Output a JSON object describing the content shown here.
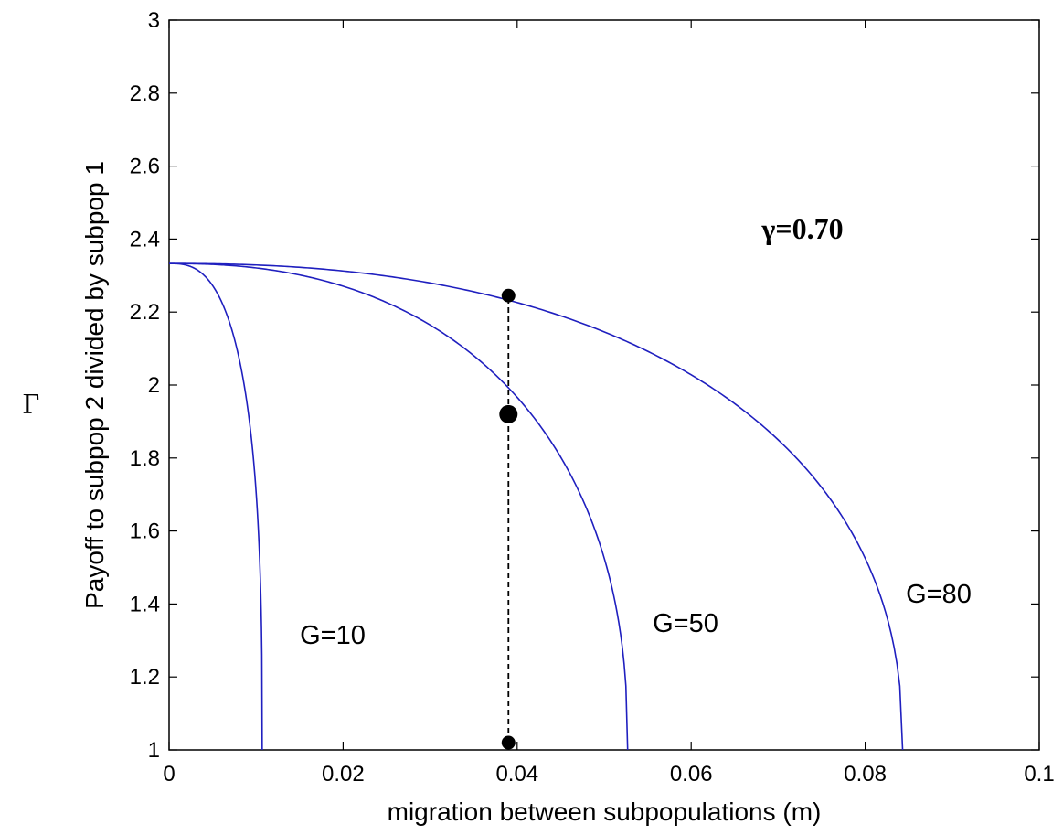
{
  "chart_data": {
    "type": "line",
    "xlabel": "migration between subpopulations (m)",
    "ylabel": "Payoff to subpop 2 divided by subpop 1",
    "side_symbol": "Γ",
    "annotation": "γ=0.70",
    "xlim": [
      0,
      0.1
    ],
    "ylim": [
      1,
      3
    ],
    "x_ticks": [
      "0",
      "0.02",
      "0.04",
      "0.06",
      "0.08",
      "0.1"
    ],
    "y_ticks": [
      "1",
      "1.2",
      "1.4",
      "1.6",
      "1.8",
      "2",
      "2.2",
      "2.4",
      "2.6",
      "2.8",
      "3"
    ],
    "grid": false,
    "line_color": "#1f1fbf",
    "series": [
      {
        "name": "G=10",
        "m_max": 0.0107,
        "y0": 2.333,
        "p": 0.36
      },
      {
        "name": "G=50",
        "m_max": 0.0527,
        "y0": 2.333,
        "p": 0.43
      },
      {
        "name": "G=80",
        "m_max": 0.0843,
        "y0": 2.333,
        "p": 0.43
      }
    ],
    "markers": [
      {
        "x": 0.039,
        "y": 2.245,
        "size": "small"
      },
      {
        "x": 0.039,
        "y": 1.92,
        "size": "large"
      },
      {
        "x": 0.039,
        "y": 1.02,
        "size": "small"
      }
    ],
    "dashed_line": {
      "x": 0.039,
      "y_from": 1.02,
      "y_to": 2.245
    }
  }
}
